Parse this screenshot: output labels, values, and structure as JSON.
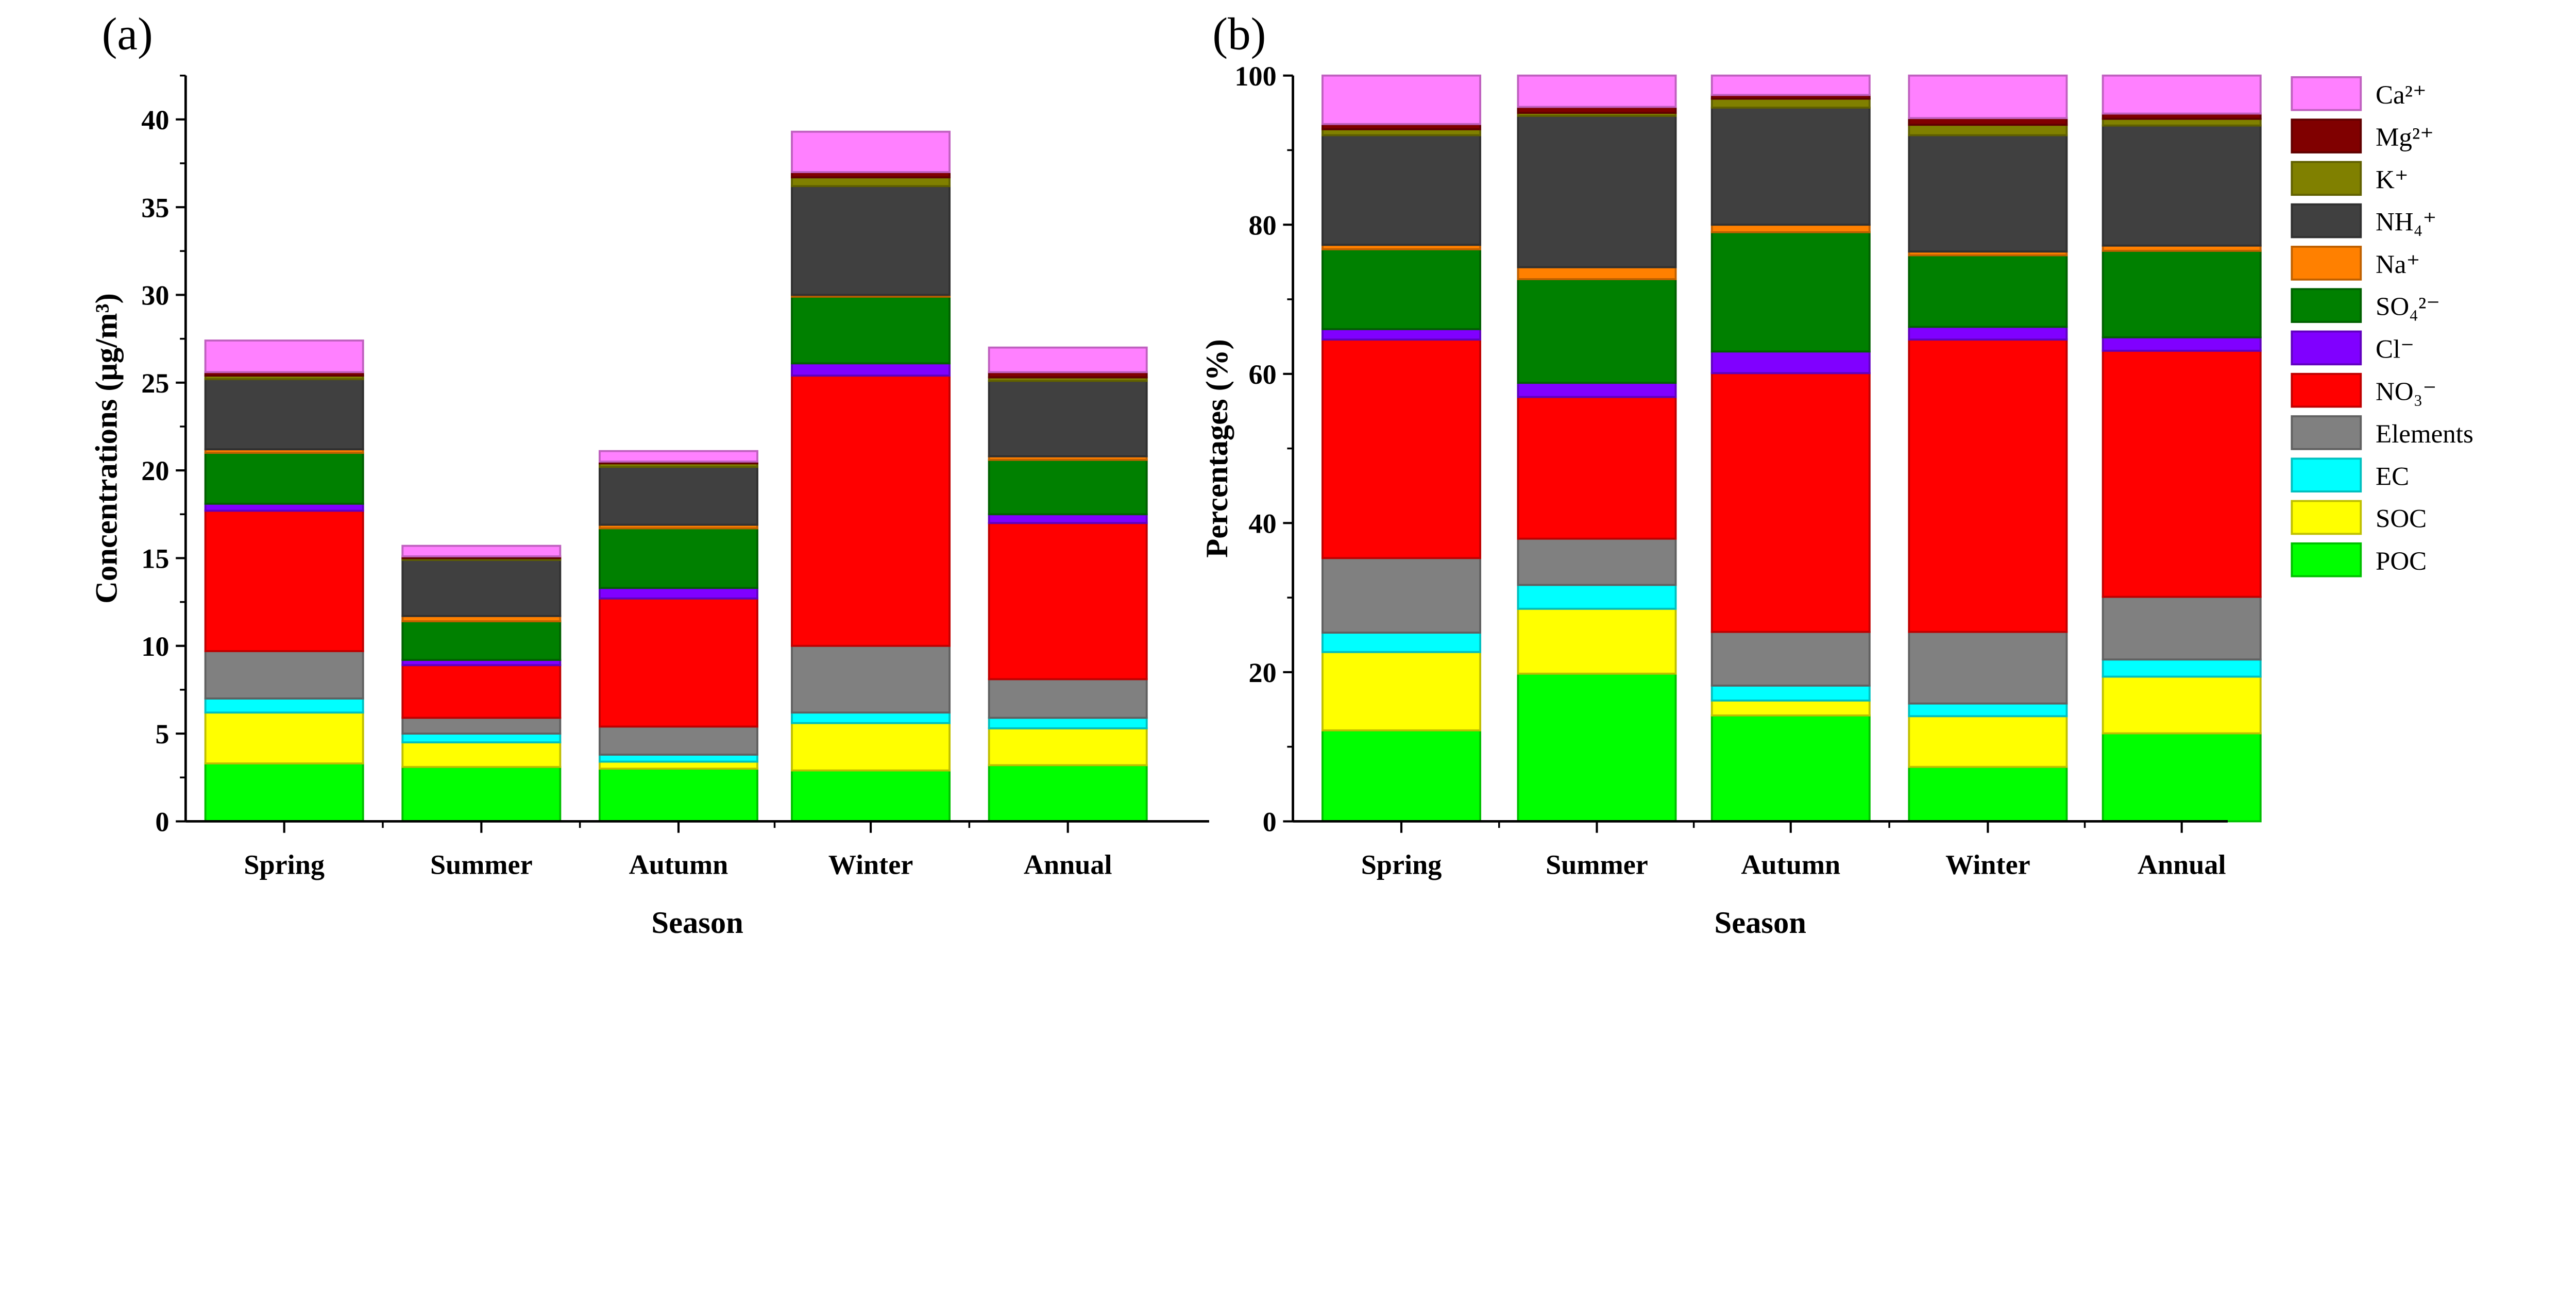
{
  "chart_data": [
    {
      "type": "bar",
      "stacked": true,
      "panel_label": "(a)",
      "xlabel": "Season",
      "ylabel": "Concentrations (μg/m³)",
      "ylim": [
        0,
        42.5
      ],
      "yticks": [
        0,
        5,
        10,
        15,
        20,
        25,
        30,
        35,
        40
      ],
      "categories": [
        "Spring",
        "Summer",
        "Autumn",
        "Winter",
        "Annual"
      ],
      "series": [
        {
          "name": "POC",
          "color": "#00ff00",
          "values": [
            3.3,
            3.1,
            3.0,
            2.9,
            3.2
          ]
        },
        {
          "name": "SOC",
          "color": "#ffff00",
          "values": [
            2.9,
            1.4,
            0.4,
            2.7,
            2.1
          ]
        },
        {
          "name": "EC",
          "color": "#00ffff",
          "values": [
            0.8,
            0.5,
            0.4,
            0.6,
            0.6
          ]
        },
        {
          "name": "Elements",
          "color": "#808080",
          "values": [
            2.7,
            0.9,
            1.6,
            3.8,
            2.2
          ]
        },
        {
          "name": "NO₃⁻",
          "color": "#ff0000",
          "values": [
            8.0,
            3.0,
            7.3,
            15.4,
            8.9
          ]
        },
        {
          "name": "Cl⁻",
          "color": "#8000ff",
          "values": [
            0.4,
            0.3,
            0.6,
            0.7,
            0.5
          ]
        },
        {
          "name": "SO₄²⁻",
          "color": "#008000",
          "values": [
            2.9,
            2.2,
            3.4,
            3.8,
            3.1
          ]
        },
        {
          "name": "Na⁺",
          "color": "#ff8000",
          "values": [
            0.2,
            0.3,
            0.2,
            0.1,
            0.2
          ]
        },
        {
          "name": "NH₄⁺",
          "color": "#404040",
          "values": [
            4.0,
            3.2,
            3.3,
            6.2,
            4.3
          ]
        },
        {
          "name": "K⁺",
          "color": "#808000",
          "values": [
            0.2,
            0.1,
            0.2,
            0.5,
            0.2
          ]
        },
        {
          "name": "Mg²⁺",
          "color": "#800000",
          "values": [
            0.2,
            0.1,
            0.1,
            0.3,
            0.3
          ]
        },
        {
          "name": "Ca²⁺",
          "color": "#ff80ff",
          "values": [
            1.8,
            0.6,
            0.6,
            2.3,
            1.4
          ]
        }
      ]
    },
    {
      "type": "bar",
      "stacked": true,
      "panel_label": "(b)",
      "xlabel": "Season",
      "ylabel": "Percentages (%)",
      "ylim": [
        0,
        100
      ],
      "yticks": [
        0,
        20,
        40,
        60,
        80,
        100
      ],
      "categories": [
        "Spring",
        "Summer",
        "Autumn",
        "Winter",
        "Annual"
      ],
      "legend_position": "right",
      "series": [
        {
          "name": "POC",
          "color": "#00ff00",
          "values": [
            12.2,
            19.8,
            14.2,
            7.3,
            11.8
          ]
        },
        {
          "name": "SOC",
          "color": "#ffff00",
          "values": [
            10.5,
            8.7,
            2.0,
            6.8,
            7.6
          ]
        },
        {
          "name": "EC",
          "color": "#00ffff",
          "values": [
            2.6,
            3.2,
            2.0,
            1.7,
            2.3
          ]
        },
        {
          "name": "Elements",
          "color": "#808080",
          "values": [
            10.0,
            6.2,
            7.2,
            9.6,
            8.4
          ]
        },
        {
          "name": "NO₃⁻",
          "color": "#ff0000",
          "values": [
            29.3,
            19.0,
            34.7,
            39.2,
            33.0
          ]
        },
        {
          "name": "Cl⁻",
          "color": "#8000ff",
          "values": [
            1.4,
            1.9,
            2.9,
            1.7,
            1.8
          ]
        },
        {
          "name": "SO₄²⁻",
          "color": "#008000",
          "values": [
            10.7,
            13.9,
            16.0,
            9.6,
            11.6
          ]
        },
        {
          "name": "Na⁺",
          "color": "#ff8000",
          "values": [
            0.6,
            1.6,
            1.0,
            0.5,
            0.7
          ]
        },
        {
          "name": "NH₄⁺",
          "color": "#404040",
          "values": [
            14.7,
            20.3,
            15.7,
            15.6,
            16.1
          ]
        },
        {
          "name": "K⁺",
          "color": "#808000",
          "values": [
            0.8,
            0.4,
            1.2,
            1.4,
            0.9
          ]
        },
        {
          "name": "Mg²⁺",
          "color": "#800000",
          "values": [
            0.7,
            0.8,
            0.5,
            0.9,
            0.7
          ]
        },
        {
          "name": "Ca²⁺",
          "color": "#ff80ff",
          "values": [
            6.5,
            4.2,
            2.6,
            5.7,
            5.1
          ]
        }
      ]
    }
  ]
}
